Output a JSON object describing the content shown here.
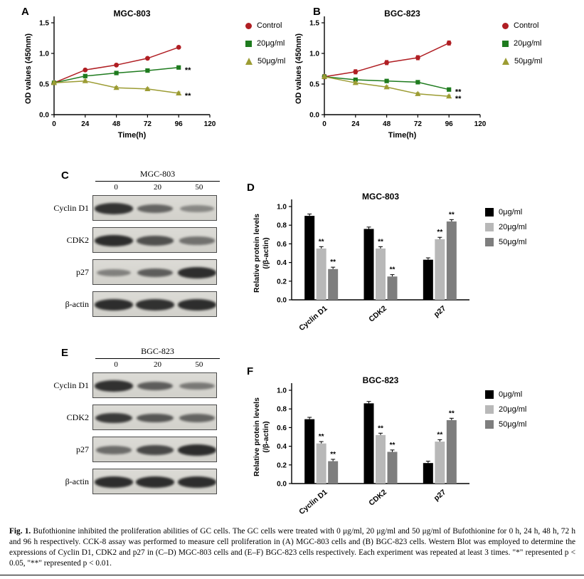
{
  "panel_labels": {
    "A": "A",
    "B": "B",
    "C": "C",
    "D": "D",
    "E": "E",
    "F": "F"
  },
  "chart_data": [
    {
      "panel": "A",
      "type": "line",
      "title": "MGC-803",
      "xlabel": "Time(h)",
      "ylabel": "OD values (450nm)",
      "xlim": [
        0,
        120
      ],
      "ylim": [
        0,
        1.5
      ],
      "xticks": [
        0,
        24,
        48,
        72,
        96,
        120
      ],
      "yticks": [
        "0.0",
        "0.5",
        "1.0",
        "1.5"
      ],
      "x": [
        0,
        24,
        48,
        72,
        96
      ],
      "legend_position": "right",
      "series": [
        {
          "name": "Control",
          "color": "#b01e23",
          "marker": "circle",
          "values": [
            0.52,
            0.73,
            0.81,
            0.92,
            1.1
          ],
          "err": 0.02,
          "sig": ""
        },
        {
          "name": "20μg/ml",
          "color": "#1e7b1e",
          "marker": "square",
          "values": [
            0.52,
            0.63,
            0.68,
            0.72,
            0.77
          ],
          "err": 0.02,
          "sig": "**"
        },
        {
          "name": "50μg/ml",
          "color": "#9c9c33",
          "marker": "triangle",
          "values": [
            0.52,
            0.55,
            0.44,
            0.42,
            0.35
          ],
          "err": 0.02,
          "sig": "**"
        }
      ]
    },
    {
      "panel": "B",
      "type": "line",
      "title": "BGC-823",
      "xlabel": "Time(h)",
      "ylabel": "OD values (450nm)",
      "xlim": [
        0,
        120
      ],
      "ylim": [
        0,
        1.5
      ],
      "xticks": [
        0,
        24,
        48,
        72,
        96,
        120
      ],
      "yticks": [
        "0.0",
        "0.5",
        "1.0",
        "1.5"
      ],
      "x": [
        0,
        24,
        48,
        72,
        96
      ],
      "legend_position": "right",
      "series": [
        {
          "name": "Control",
          "color": "#b01e23",
          "marker": "circle",
          "values": [
            0.62,
            0.7,
            0.85,
            0.93,
            1.17
          ],
          "err": 0.035,
          "sig": ""
        },
        {
          "name": "20μg/ml",
          "color": "#1e7b1e",
          "marker": "square",
          "values": [
            0.62,
            0.57,
            0.55,
            0.53,
            0.41
          ],
          "err": 0.02,
          "sig": "**"
        },
        {
          "name": "50μg/ml",
          "color": "#9c9c33",
          "marker": "triangle",
          "values": [
            0.62,
            0.52,
            0.45,
            0.34,
            0.3
          ],
          "err": 0.02,
          "sig": "**"
        }
      ]
    },
    {
      "panel": "D",
      "type": "bar",
      "title": "MGC-803",
      "ylabel": "Relative protein  levels",
      "ylabel2": "(/β-actin)",
      "ylim": [
        0,
        1.0
      ],
      "yticks": [
        "0.0",
        "0.2",
        "0.4",
        "0.6",
        "0.8",
        "1.0"
      ],
      "categories": [
        "Cyclin D1",
        "CDK2",
        "p27"
      ],
      "err": 0.02,
      "legend_position": "right",
      "series": [
        {
          "name": "0μg/ml",
          "color": "#000000",
          "values": [
            0.9,
            0.76,
            0.43
          ],
          "sig": [
            "",
            "",
            ""
          ]
        },
        {
          "name": "20μg/ml",
          "color": "#b8b8b8",
          "values": [
            0.55,
            0.55,
            0.65
          ],
          "sig": [
            "**",
            "**",
            "**"
          ]
        },
        {
          "name": "50μg/ml",
          "color": "#7e7e7e",
          "values": [
            0.33,
            0.25,
            0.84
          ],
          "sig": [
            "**",
            "**",
            "**"
          ]
        }
      ]
    },
    {
      "panel": "F",
      "type": "bar",
      "title": "BGC-823",
      "ylabel": "Relative protein  levels",
      "ylabel2": "(/β-actin)",
      "ylim": [
        0,
        1.0
      ],
      "yticks": [
        "0.0",
        "0.2",
        "0.4",
        "0.6",
        "0.8",
        "1.0"
      ],
      "categories": [
        "Cyclin D1",
        "CDK2",
        "p27"
      ],
      "err": 0.02,
      "legend_position": "right",
      "series": [
        {
          "name": "0μg/ml",
          "color": "#000000",
          "values": [
            0.69,
            0.86,
            0.22
          ],
          "sig": [
            "",
            "",
            ""
          ]
        },
        {
          "name": "20μg/ml",
          "color": "#b8b8b8",
          "values": [
            0.43,
            0.52,
            0.45
          ],
          "sig": [
            "**",
            "**",
            "**"
          ]
        },
        {
          "name": "50μg/ml",
          "color": "#7e7e7e",
          "values": [
            0.24,
            0.34,
            0.68
          ],
          "sig": [
            "**",
            "**",
            "**"
          ]
        }
      ]
    }
  ],
  "blots": {
    "C": {
      "title": "MGC-803",
      "lanes": [
        "0",
        "20",
        "50"
      ],
      "rows": [
        {
          "name": "Cyclin D1",
          "intensities": [
            0.9,
            0.55,
            0.3
          ]
        },
        {
          "name": "CDK2",
          "intensities": [
            0.95,
            0.7,
            0.45
          ]
        },
        {
          "name": "p27",
          "intensities": [
            0.35,
            0.6,
            0.95
          ]
        },
        {
          "name": "β-actin",
          "intensities": [
            0.95,
            0.92,
            0.95
          ]
        }
      ]
    },
    "E": {
      "title": "BGC-823",
      "lanes": [
        "0",
        "20",
        "50"
      ],
      "rows": [
        {
          "name": "Cyclin D1",
          "intensities": [
            0.92,
            0.6,
            0.4
          ]
        },
        {
          "name": "CDK2",
          "intensities": [
            0.85,
            0.65,
            0.55
          ]
        },
        {
          "name": "p27",
          "intensities": [
            0.5,
            0.75,
            0.95
          ]
        },
        {
          "name": "β-actin",
          "intensities": [
            0.95,
            0.95,
            0.95
          ]
        }
      ]
    }
  },
  "caption": {
    "lead": "Fig. 1.",
    "text": " Bufothionine inhibited the proliferation abilities of GC cells. The GC cells were treated with 0 μg/ml, 20 μg/ml and 50 μg/ml of Bufothionine for 0 h, 24 h, 48 h, 72 h and 96 h respectively. CCK-8 assay was performed to measure cell proliferation in (A) MGC-803 cells and (B) BGC-823 cells. Western Blot was employed to determine the expressions of Cyclin D1, CDK2 and p27 in (C–D) MGC-803 cells and (E–F) BGC-823 cells respectively. Each experiment was repeated at least 3 times. \"*\" represented p < 0.05, \"**\" represented p < 0.01."
  }
}
